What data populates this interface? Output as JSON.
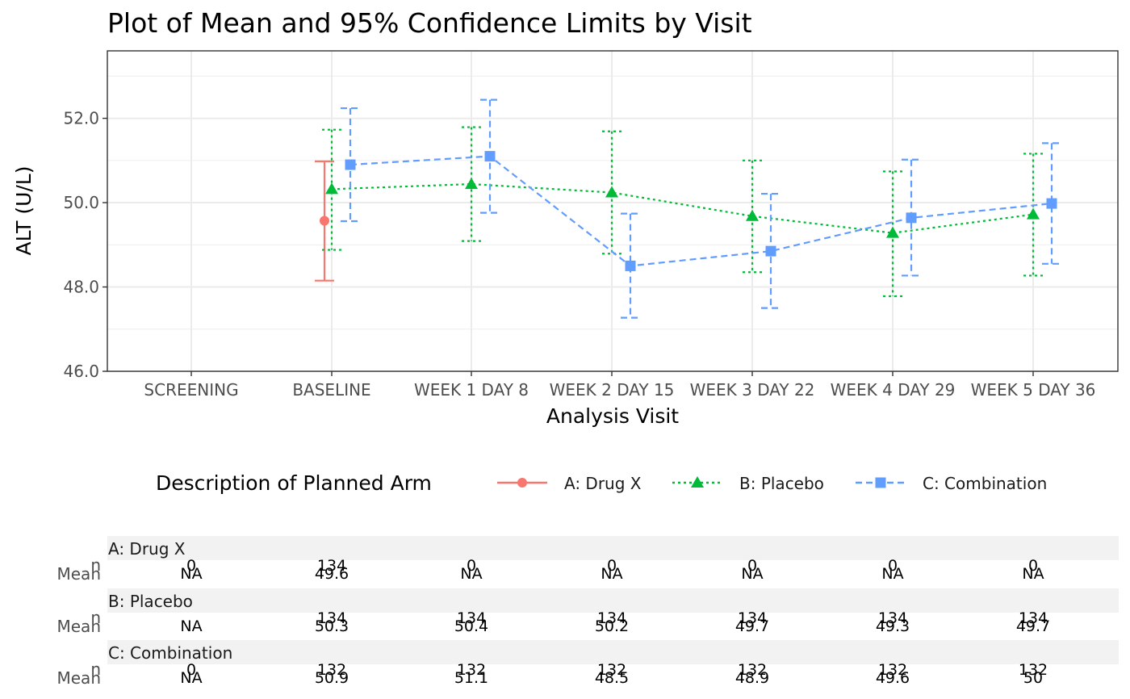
{
  "chart_data": {
    "type": "line",
    "title": "Plot of Mean and 95% Confidence Limits by Visit",
    "xlabel": "Analysis Visit",
    "ylabel": "ALT (U/L)",
    "categories": [
      "SCREENING",
      "BASELINE",
      "WEEK 1 DAY 8",
      "WEEK 2 DAY 15",
      "WEEK 3 DAY 22",
      "WEEK 4 DAY 29",
      "WEEK 5 DAY 36"
    ],
    "ylim": [
      46.0,
      53.6
    ],
    "yticks": [
      "46.0",
      "48.0",
      "50.0",
      "52.0"
    ],
    "grid": true,
    "legend": {
      "title": "Description of Planned Arm",
      "position": "bottom"
    },
    "series": [
      {
        "name": "A: Drug X",
        "color": "#F8766D",
        "marker": "circle",
        "line": "solid",
        "mean": [
          null,
          49.57,
          null,
          null,
          null,
          null,
          null
        ],
        "lower": [
          null,
          48.15,
          null,
          null,
          null,
          null,
          null
        ],
        "upper": [
          null,
          50.98,
          null,
          null,
          null,
          null,
          null
        ]
      },
      {
        "name": "B: Placebo",
        "color": "#00BA38",
        "marker": "triangle",
        "line": "dotted",
        "mean": [
          null,
          50.32,
          50.44,
          50.24,
          49.68,
          49.28,
          49.72
        ],
        "lower": [
          null,
          48.88,
          49.09,
          48.79,
          48.35,
          47.78,
          48.27
        ],
        "upper": [
          null,
          51.73,
          51.79,
          51.69,
          51.0,
          50.74,
          51.16
        ]
      },
      {
        "name": "C: Combination",
        "color": "#619CFF",
        "marker": "square",
        "line": "dashed",
        "mean": [
          null,
          50.9,
          51.1,
          48.5,
          48.85,
          49.64,
          49.98
        ],
        "lower": [
          null,
          49.56,
          49.76,
          47.27,
          47.5,
          48.27,
          48.55
        ],
        "upper": [
          null,
          52.24,
          52.44,
          49.74,
          50.21,
          51.02,
          51.41
        ]
      }
    ]
  },
  "summary_table": {
    "row_labels": [
      "n",
      "Mean"
    ],
    "groups": [
      {
        "name": "A: Drug X",
        "n": [
          "0",
          "134",
          "0",
          "0",
          "0",
          "0",
          "0"
        ],
        "mean": [
          "NA",
          "49.6",
          "NA",
          "NA",
          "NA",
          "NA",
          "NA"
        ]
      },
      {
        "name": "B: Placebo",
        "n": [
          "",
          "134",
          "134",
          "134",
          "134",
          "134",
          "134"
        ],
        "mean": [
          "NA",
          "50.3",
          "50.4",
          "50.2",
          "49.7",
          "49.3",
          "49.7"
        ]
      },
      {
        "name": "C: Combination",
        "n": [
          "0",
          "132",
          "132",
          "132",
          "132",
          "132",
          "132"
        ],
        "mean": [
          "NA",
          "50.9",
          "51.1",
          "48.5",
          "48.9",
          "49.6",
          "50"
        ]
      }
    ]
  }
}
